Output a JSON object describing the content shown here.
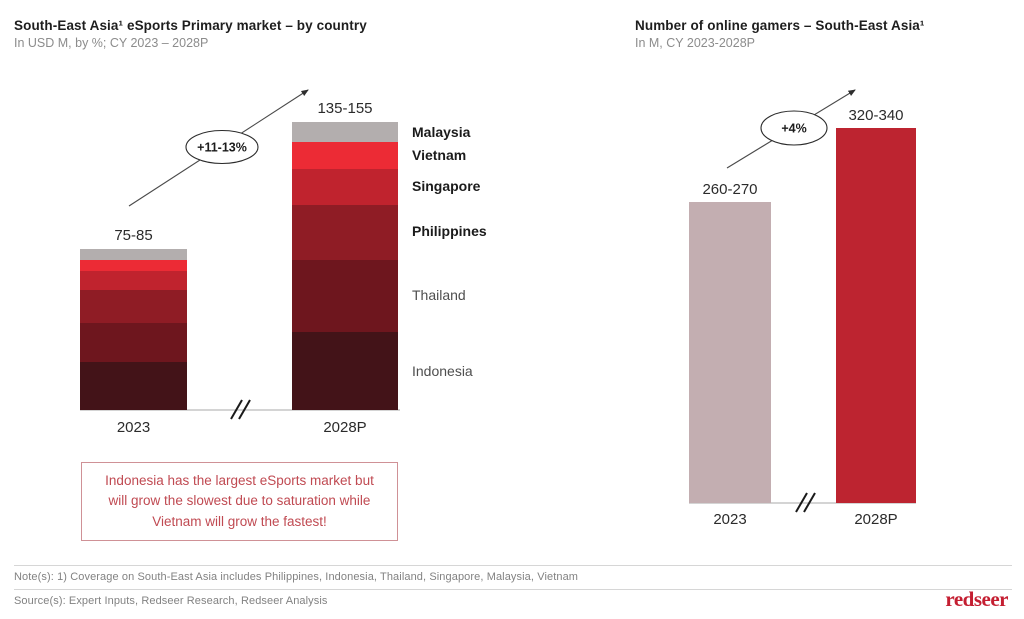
{
  "chart_data": [
    {
      "type": "bar",
      "variant": "stacked",
      "title": "South-East Asia¹ eSports Primary market – by country",
      "subtitle": "In USD M, by %; CY 2023 – 2028P",
      "units": "USD M",
      "categories": [
        "2023",
        "2028P"
      ],
      "bar_total_labels": [
        "75-85",
        "135-155"
      ],
      "growth_annotation": "+11-13%",
      "axis_break": true,
      "legend_position": "right",
      "series": [
        {
          "name": "Malaysia",
          "color": "#b3aeae",
          "pct_of_total": [
            6.9,
            6.9
          ]
        },
        {
          "name": "Vietnam",
          "color": "#ec2b35",
          "pct_of_total": [
            6.9,
            9.4
          ]
        },
        {
          "name": "Singapore",
          "color": "#c0232e",
          "pct_of_total": [
            11.9,
            12.5
          ]
        },
        {
          "name": "Philippines",
          "color": "#8f1c25",
          "pct_of_total": [
            20.5,
            19.1
          ]
        },
        {
          "name": "Thailand",
          "color": "#6e161e",
          "pct_of_total": [
            23.8,
            25.0
          ]
        },
        {
          "name": "Indonesia",
          "color": "#431318",
          "pct_of_total": [
            30.0,
            27.1
          ]
        }
      ]
    },
    {
      "type": "bar",
      "title": "Number of online gamers – South-East Asia¹",
      "subtitle": "In M, CY 2023-2028P",
      "units": "M",
      "categories": [
        "2023",
        "2028P"
      ],
      "values": [
        "260-270",
        "320-340"
      ],
      "colors": [
        "#c3aeb1",
        "#bd2430"
      ],
      "growth_annotation": "+4%",
      "axis_break": true
    }
  ],
  "callout": {
    "text": "Indonesia has the largest eSports market but will grow the slowest due to saturation while Vietnam will grow the fastest!",
    "text_color": "#c04a52",
    "border_color": "#cf9196"
  },
  "footer": {
    "note": "Note(s): 1) Coverage on South-East Asia includes Philippines, Indonesia, Thailand, Singapore, Malaysia, Vietnam",
    "source": "Source(s): Expert Inputs, Redseer Research, Redseer Analysis",
    "logo_text": "redseer",
    "logo_color": "#c41e31"
  }
}
